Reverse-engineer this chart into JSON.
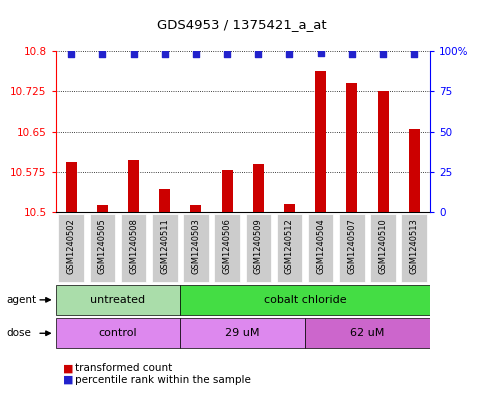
{
  "title": "GDS4953 / 1375421_a_at",
  "samples": [
    "GSM1240502",
    "GSM1240505",
    "GSM1240508",
    "GSM1240511",
    "GSM1240503",
    "GSM1240506",
    "GSM1240509",
    "GSM1240512",
    "GSM1240504",
    "GSM1240507",
    "GSM1240510",
    "GSM1240513"
  ],
  "bar_values": [
    10.593,
    10.513,
    10.597,
    10.543,
    10.513,
    10.578,
    10.59,
    10.515,
    10.762,
    10.74,
    10.725,
    10.655
  ],
  "percentile_values": [
    98,
    98,
    98,
    98,
    98,
    98,
    98,
    98,
    99,
    98,
    98,
    98
  ],
  "ymin": 10.5,
  "ymax": 10.8,
  "yticks": [
    10.5,
    10.575,
    10.65,
    10.725,
    10.8
  ],
  "ytick_labels": [
    "10.5",
    "10.575",
    "10.65",
    "10.725",
    "10.8"
  ],
  "right_yticks": [
    0,
    25,
    50,
    75,
    100
  ],
  "right_ytick_labels": [
    "0",
    "25",
    "50",
    "75",
    "100%"
  ],
  "bar_color": "#cc0000",
  "dot_color": "#2222cc",
  "bar_bottom": 10.5,
  "agent_groups": [
    {
      "label": "untreated",
      "start": 0,
      "end": 4,
      "color": "#aaddaa"
    },
    {
      "label": "cobalt chloride",
      "start": 4,
      "end": 12,
      "color": "#44dd44"
    }
  ],
  "dose_groups": [
    {
      "label": "control",
      "start": 0,
      "end": 4,
      "color": "#dd88ee"
    },
    {
      "label": "29 uM",
      "start": 4,
      "end": 8,
      "color": "#dd88ee"
    },
    {
      "label": "62 uM",
      "start": 8,
      "end": 12,
      "color": "#cc66cc"
    }
  ],
  "xtick_bg_color": "#cccccc",
  "legend_bar_color": "#cc0000",
  "legend_dot_color": "#2222cc"
}
